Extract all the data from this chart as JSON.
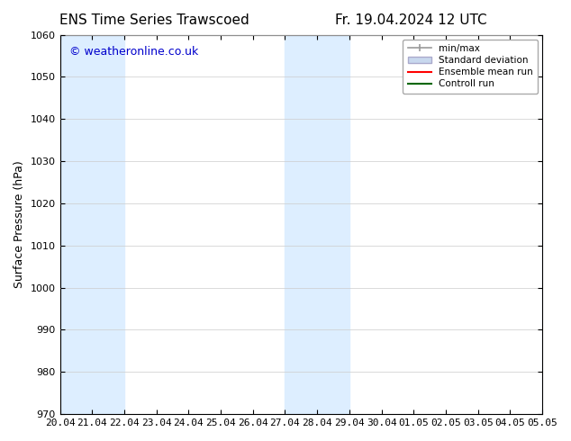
{
  "title_left": "ENS Time Series Trawscoed",
  "title_right": "Fr. 19.04.2024 12 UTC",
  "ylabel": "Surface Pressure (hPa)",
  "ylim": [
    970,
    1060
  ],
  "yticks": [
    970,
    980,
    990,
    1000,
    1010,
    1020,
    1030,
    1040,
    1050,
    1060
  ],
  "xtick_labels": [
    "20.04",
    "21.04",
    "22.04",
    "23.04",
    "24.04",
    "25.04",
    "26.04",
    "27.04",
    "28.04",
    "29.04",
    "30.04",
    "01.05",
    "02.05",
    "03.05",
    "04.05",
    "05.05"
  ],
  "watermark": "© weatheronline.co.uk",
  "watermark_color": "#0000cc",
  "bg_color": "#ffffff",
  "plot_bg_color": "#ffffff",
  "shaded_color": "#ddeeff",
  "shaded_bands_indices": [
    0,
    1,
    7,
    8,
    15
  ],
  "legend_entries": [
    "min/max",
    "Standard deviation",
    "Ensemble mean run",
    "Controll run"
  ],
  "legend_colors": [
    "#aaaaaa",
    "#aaaacc",
    "#ff0000",
    "#006600"
  ],
  "title_fontsize": 11,
  "tick_fontsize": 8,
  "ylabel_fontsize": 9
}
